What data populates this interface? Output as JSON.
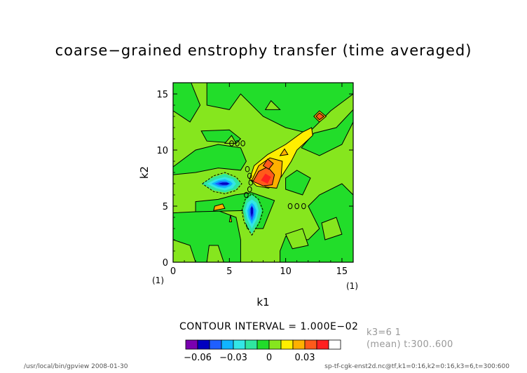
{
  "title": "coarse−grained enstrophy transfer (time averaged)",
  "contour_interval_text": "CONTOUR INTERVAL = 1.000E−02",
  "info": {
    "line1": "k3=6  1",
    "line2": "(mean) t:300..600"
  },
  "footer": {
    "left": "/usr/local/bin/gpview  2008-01-30",
    "right": "sp-tf-cgk-enst2d.nc@tf,k1=0:16,k2=0:16,k3=6,t=300:600"
  },
  "colors": {
    "levels": [
      "#7a00b0",
      "#0000c0",
      "#1f5fff",
      "#10b4ff",
      "#33e6e6",
      "#2fe6a0",
      "#22dd2a",
      "#86e61e",
      "#ffee00",
      "#ffb000",
      "#ff5a1a",
      "#ff2020",
      "#ffffff"
    ],
    "background_level": "#86e61e"
  },
  "chart_data": {
    "type": "heatmap",
    "title": "coarse−grained enstrophy transfer (time averaged)",
    "xlabel": "k1",
    "ylabel": "k2",
    "xlim": [
      0,
      16
    ],
    "ylim": [
      0,
      16
    ],
    "x_ticks": [
      0,
      5,
      10,
      15
    ],
    "y_ticks": [
      0,
      5,
      10,
      15
    ],
    "x_index_labels": [
      "(1)",
      "(1)"
    ],
    "contour_interval": 0.01,
    "colorbar": {
      "boundaries": [
        -0.06,
        -0.05,
        -0.04,
        -0.03,
        -0.02,
        -0.01,
        0,
        0.01,
        0.02,
        0.03,
        0.04
      ],
      "tick_values": [
        -0.06,
        -0.03,
        0,
        0.03
      ],
      "tick_labels": [
        "−0.06",
        "−0.03",
        "0",
        "0.03"
      ]
    },
    "features": [
      {
        "kind": "negative_minimum",
        "k1": 4.5,
        "k2": 7,
        "value": -0.06
      },
      {
        "kind": "negative_minimum",
        "k1": 7,
        "k2": 4.5,
        "value": -0.06
      },
      {
        "kind": "positive_maximum",
        "k1": 8.5,
        "k2": 8,
        "value": 0.04
      },
      {
        "kind": "positive_maximum",
        "k1": 13,
        "k2": 13,
        "value": 0.04
      },
      {
        "kind": "positive_ridge",
        "k1_range": [
          7,
          13
        ],
        "k2_range": [
          7,
          13
        ],
        "value": 0.02
      },
      {
        "kind": "negative_band",
        "k1_range": [
          0,
          16
        ],
        "k2_range": [
          0,
          16
        ],
        "value": -0.01
      }
    ]
  }
}
